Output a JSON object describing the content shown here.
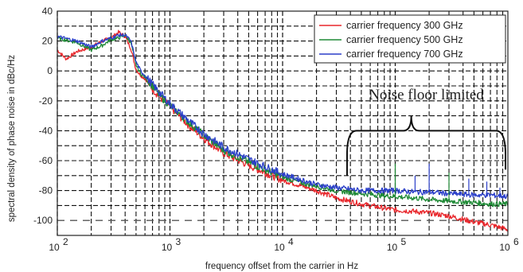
{
  "chart_data": {
    "type": "line",
    "title": "",
    "xlabel": "frequency offset from the carrier in Hz",
    "ylabel": "spectral density of phase noise in dBc/Hz",
    "xscale": "log",
    "xlim": [
      100,
      1000000
    ],
    "ylim": [
      -110,
      40
    ],
    "grid": true,
    "legend_position": "top-right",
    "xticks": [
      {
        "value": 100,
        "base": "10",
        "exp": "2"
      },
      {
        "value": 1000,
        "base": "10",
        "exp": "3"
      },
      {
        "value": 10000,
        "base": "10",
        "exp": "4"
      },
      {
        "value": 100000,
        "base": "10",
        "exp": "5"
      },
      {
        "value": 1000000,
        "base": "10",
        "exp": "6"
      }
    ],
    "yticks": [
      40,
      20,
      0,
      -20,
      -40,
      -60,
      -80,
      -100
    ],
    "reference_line": {
      "y": -100,
      "style": "dashed"
    },
    "annotation": {
      "text": "Noise floor limited",
      "x_from": 35000,
      "x_to": 1000000
    },
    "series": [
      {
        "name": "carrier frequency 300 GHz",
        "color": "#e8262b",
        "points": [
          [
            100,
            14
          ],
          [
            120,
            8
          ],
          [
            150,
            13
          ],
          [
            200,
            16
          ],
          [
            250,
            20
          ],
          [
            300,
            22
          ],
          [
            350,
            26
          ],
          [
            400,
            23
          ],
          [
            450,
            15
          ],
          [
            500,
            1
          ],
          [
            550,
            -3
          ],
          [
            600,
            -5
          ],
          [
            700,
            -12
          ],
          [
            800,
            -17
          ],
          [
            1000,
            -24
          ],
          [
            1500,
            -37
          ],
          [
            2000,
            -45
          ],
          [
            3000,
            -55
          ],
          [
            5000,
            -63
          ],
          [
            7000,
            -68
          ],
          [
            10000,
            -73
          ],
          [
            15000,
            -77
          ],
          [
            20000,
            -80
          ],
          [
            30000,
            -85
          ],
          [
            50000,
            -89
          ],
          [
            70000,
            -91
          ],
          [
            100000,
            -93
          ],
          [
            150000,
            -94
          ],
          [
            200000,
            -95
          ],
          [
            300000,
            -97
          ],
          [
            500000,
            -101
          ],
          [
            700000,
            -103
          ],
          [
            1000000,
            -106
          ]
        ]
      },
      {
        "name": "carrier frequency 500 GHz",
        "color": "#1f8a36",
        "points": [
          [
            100,
            22
          ],
          [
            150,
            19
          ],
          [
            200,
            14
          ],
          [
            250,
            17
          ],
          [
            300,
            21
          ],
          [
            350,
            22
          ],
          [
            400,
            24
          ],
          [
            450,
            19
          ],
          [
            500,
            4
          ],
          [
            550,
            -2
          ],
          [
            600,
            -4
          ],
          [
            700,
            -10
          ],
          [
            800,
            -16
          ],
          [
            1000,
            -23
          ],
          [
            1500,
            -35
          ],
          [
            2000,
            -43
          ],
          [
            3000,
            -53
          ],
          [
            5000,
            -61
          ],
          [
            7000,
            -66
          ],
          [
            10000,
            -71
          ],
          [
            15000,
            -75
          ],
          [
            20000,
            -77
          ],
          [
            30000,
            -80
          ],
          [
            50000,
            -82
          ],
          [
            70000,
            -83
          ],
          [
            100000,
            -84
          ],
          [
            150000,
            -85
          ],
          [
            200000,
            -86
          ],
          [
            300000,
            -87
          ],
          [
            500000,
            -88
          ],
          [
            700000,
            -89
          ],
          [
            1000000,
            -89
          ]
        ]
      },
      {
        "name": "carrier frequency 700 GHz",
        "color": "#2b3fc9",
        "points": [
          [
            100,
            23
          ],
          [
            150,
            20
          ],
          [
            200,
            16
          ],
          [
            250,
            20
          ],
          [
            300,
            22
          ],
          [
            350,
            24
          ],
          [
            400,
            24
          ],
          [
            450,
            20
          ],
          [
            500,
            6
          ],
          [
            550,
            0
          ],
          [
            600,
            -3
          ],
          [
            700,
            -9
          ],
          [
            800,
            -14
          ],
          [
            1000,
            -22
          ],
          [
            1500,
            -34
          ],
          [
            2000,
            -42
          ],
          [
            3000,
            -51
          ],
          [
            5000,
            -59
          ],
          [
            7000,
            -64
          ],
          [
            10000,
            -69
          ],
          [
            15000,
            -73
          ],
          [
            20000,
            -76
          ],
          [
            30000,
            -78
          ],
          [
            50000,
            -80
          ],
          [
            70000,
            -80
          ],
          [
            100000,
            -80
          ],
          [
            150000,
            -81
          ],
          [
            200000,
            -81
          ],
          [
            300000,
            -82
          ],
          [
            500000,
            -83
          ],
          [
            700000,
            -83
          ],
          [
            1000000,
            -84
          ]
        ]
      }
    ]
  }
}
